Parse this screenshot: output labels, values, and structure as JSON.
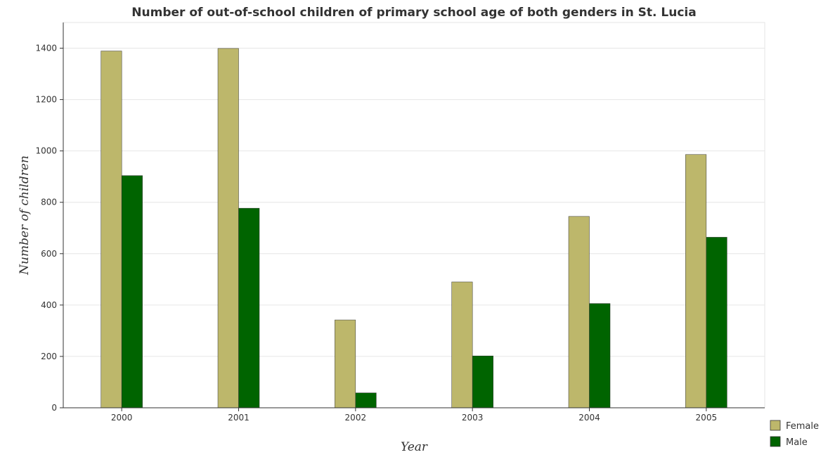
{
  "chart_data": {
    "type": "bar",
    "title": "Number of out-of-school children of primary school age of both genders in St. Lucia",
    "xlabel": "Year",
    "ylabel": "Number of children",
    "categories": [
      "2000",
      "2001",
      "2002",
      "2003",
      "2004",
      "2005"
    ],
    "series": [
      {
        "name": "Female",
        "color": "#bdb76b",
        "values": [
          1389,
          1399,
          342,
          490,
          745,
          986
        ]
      },
      {
        "name": "Male",
        "color": "#006400",
        "values": [
          904,
          777,
          58,
          202,
          406,
          664
        ]
      }
    ],
    "ylim": [
      0,
      1500
    ],
    "yticks": [
      0,
      200,
      400,
      600,
      800,
      1000,
      1200,
      1400
    ],
    "grid": true,
    "legend_position": "bottom-right"
  }
}
